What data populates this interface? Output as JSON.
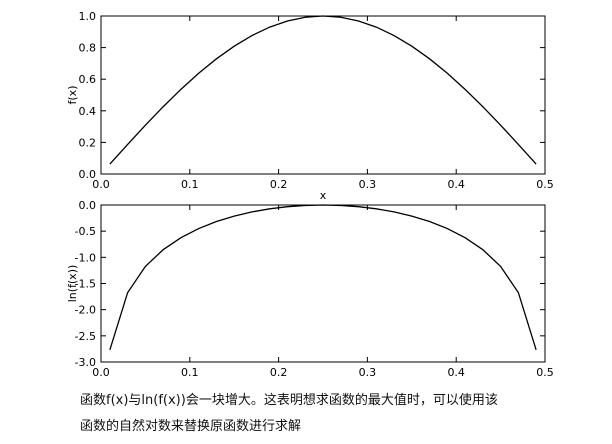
{
  "chart_data": [
    {
      "type": "line",
      "ylabel": "f(x)",
      "xlabel": "x",
      "x": [
        0.01,
        0.03,
        0.05,
        0.07,
        0.09,
        0.11,
        0.13,
        0.15,
        0.17,
        0.19,
        0.21,
        0.23,
        0.25,
        0.27,
        0.29,
        0.31,
        0.33,
        0.35,
        0.37,
        0.39,
        0.41,
        0.43,
        0.45,
        0.47,
        0.49
      ],
      "series": [
        {
          "color": "#000000",
          "values": [
            0.0628,
            0.1874,
            0.309,
            0.4258,
            0.5358,
            0.6374,
            0.729,
            0.809,
            0.8763,
            0.9298,
            0.9686,
            0.9921,
            1,
            0.9921,
            0.9686,
            0.9298,
            0.8763,
            0.809,
            0.729,
            0.6374,
            0.5358,
            0.4258,
            0.309,
            0.1874,
            0.0628
          ]
        }
      ],
      "xlim": [
        0,
        0.5
      ],
      "ylim": [
        0,
        1
      ],
      "xticks": [
        {
          "value": 0,
          "label": "0.0"
        },
        0.1,
        0.2,
        0.3,
        0.4,
        {
          "value": 0.5,
          "label": "0.5"
        }
      ],
      "yticks": [
        {
          "value": 0,
          "label": "0.0"
        },
        0.2,
        0.4,
        0.6,
        0.8,
        {
          "value": 1,
          "label": "1.0"
        }
      ]
    },
    {
      "type": "line",
      "ylabel": "ln(f(x))",
      "x": [
        0.01,
        0.03,
        0.05,
        0.07,
        0.09,
        0.11,
        0.13,
        0.15,
        0.17,
        0.19,
        0.21,
        0.23,
        0.25,
        0.27,
        0.29,
        0.31,
        0.33,
        0.35,
        0.37,
        0.39,
        0.41,
        0.43,
        0.45,
        0.47,
        0.49
      ],
      "series": [
        {
          "color": "#000000",
          "values": [
            -2.768,
            -1.674,
            -1.174,
            -0.854,
            -0.624,
            -0.45,
            -0.316,
            -0.212,
            -0.132,
            -0.073,
            -0.032,
            -0.008,
            0,
            -0.008,
            -0.032,
            -0.073,
            -0.132,
            -0.212,
            -0.316,
            -0.45,
            -0.624,
            -0.854,
            -1.174,
            -1.674,
            -2.768
          ]
        }
      ],
      "xlim": [
        0,
        0.5
      ],
      "ylim": [
        -3,
        0
      ],
      "xticks": [
        {
          "value": 0,
          "label": "0.0"
        },
        0.1,
        0.2,
        0.3,
        0.4,
        {
          "value": 0.5,
          "label": "0.5"
        }
      ],
      "yticks": [
        {
          "value": -3,
          "label": "-3.0"
        },
        -2.5,
        {
          "value": -2,
          "label": "-2.0"
        },
        -1.5,
        {
          "value": -1,
          "label": "-1.0"
        },
        -0.5,
        {
          "value": 0,
          "label": "0.0"
        }
      ]
    }
  ],
  "caption": {
    "lines": [
      "函数f(x)与ln(f(x))会一块增大。这表明想求函数的最大值时，可以使用该",
      "函数的自然对数来替换原函数进行求解"
    ]
  }
}
